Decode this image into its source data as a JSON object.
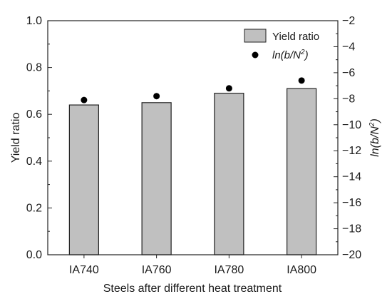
{
  "chart_data": {
    "type": "bar",
    "categories": [
      "IA740",
      "IA760",
      "IA780",
      "IA800"
    ],
    "series": [
      {
        "name": "Yield ratio",
        "kind": "bar",
        "axis": "left",
        "values": [
          0.64,
          0.65,
          0.69,
          0.71
        ],
        "color": "#c0c0c0"
      },
      {
        "name": "ln(b/N²)",
        "kind": "scatter",
        "axis": "right",
        "values": [
          -8.1,
          -7.8,
          -7.2,
          -6.6
        ],
        "color": "#000000"
      }
    ],
    "xlabel": "Steels after different heat treatment",
    "ylabel": "Yield ratio",
    "y2label": "ln(b/N²)",
    "ylim": [
      0.0,
      1.0
    ],
    "y2lim": [
      -20,
      -2
    ],
    "yticks": [
      "0.0",
      "0.2",
      "0.4",
      "0.6",
      "0.8",
      "1.0"
    ],
    "y2ticks": [
      "−20",
      "−18",
      "−16",
      "−14",
      "−12",
      "−10",
      "−8",
      "−6",
      "−4",
      "−2"
    ],
    "legend": {
      "position": "top-right",
      "items": [
        {
          "label_main": "Yield ratio",
          "italic": false,
          "sup": "",
          "tail": ""
        },
        {
          "label_main": "ln(b/N",
          "italic": true,
          "sup": "2",
          "tail": ")"
        }
      ]
    },
    "y2label_parts": {
      "main": "ln(b/N",
      "sup": "2",
      "tail": ")"
    },
    "grid": false
  }
}
